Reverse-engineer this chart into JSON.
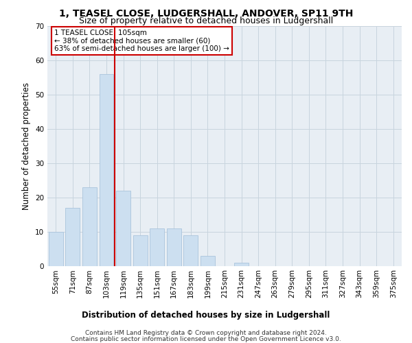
{
  "title": "1, TEASEL CLOSE, LUDGERSHALL, ANDOVER, SP11 9TH",
  "subtitle": "Size of property relative to detached houses in Ludgershall",
  "xlabel_bottom": "Distribution of detached houses by size in Ludgershall",
  "ylabel": "Number of detached properties",
  "categories": [
    "55sqm",
    "71sqm",
    "87sqm",
    "103sqm",
    "119sqm",
    "135sqm",
    "151sqm",
    "167sqm",
    "183sqm",
    "199sqm",
    "215sqm",
    "231sqm",
    "247sqm",
    "263sqm",
    "279sqm",
    "295sqm",
    "311sqm",
    "327sqm",
    "343sqm",
    "359sqm",
    "375sqm"
  ],
  "values": [
    10,
    17,
    23,
    56,
    22,
    9,
    11,
    11,
    9,
    3,
    0,
    1,
    0,
    0,
    0,
    0,
    0,
    0,
    0,
    0,
    0
  ],
  "bar_color": "#ccdff0",
  "bar_edge_color": "#aac4dc",
  "grid_color": "#c8d4de",
  "background_color": "#e8eef4",
  "vline_x_index": 3,
  "vline_color": "#cc0000",
  "annotation_text": "1 TEASEL CLOSE: 105sqm\n← 38% of detached houses are smaller (60)\n63% of semi-detached houses are larger (100) →",
  "annotation_box_facecolor": "#ffffff",
  "annotation_box_edgecolor": "#cc0000",
  "ylim": [
    0,
    70
  ],
  "yticks": [
    0,
    10,
    20,
    30,
    40,
    50,
    60,
    70
  ],
  "footer_line1": "Contains HM Land Registry data © Crown copyright and database right 2024.",
  "footer_line2": "Contains public sector information licensed under the Open Government Licence v3.0.",
  "title_fontsize": 10,
  "subtitle_fontsize": 9,
  "tick_fontsize": 7.5,
  "ylabel_fontsize": 8.5,
  "annotation_fontsize": 7.5,
  "footer_fontsize": 6.5,
  "xlabel_fontsize": 8.5
}
